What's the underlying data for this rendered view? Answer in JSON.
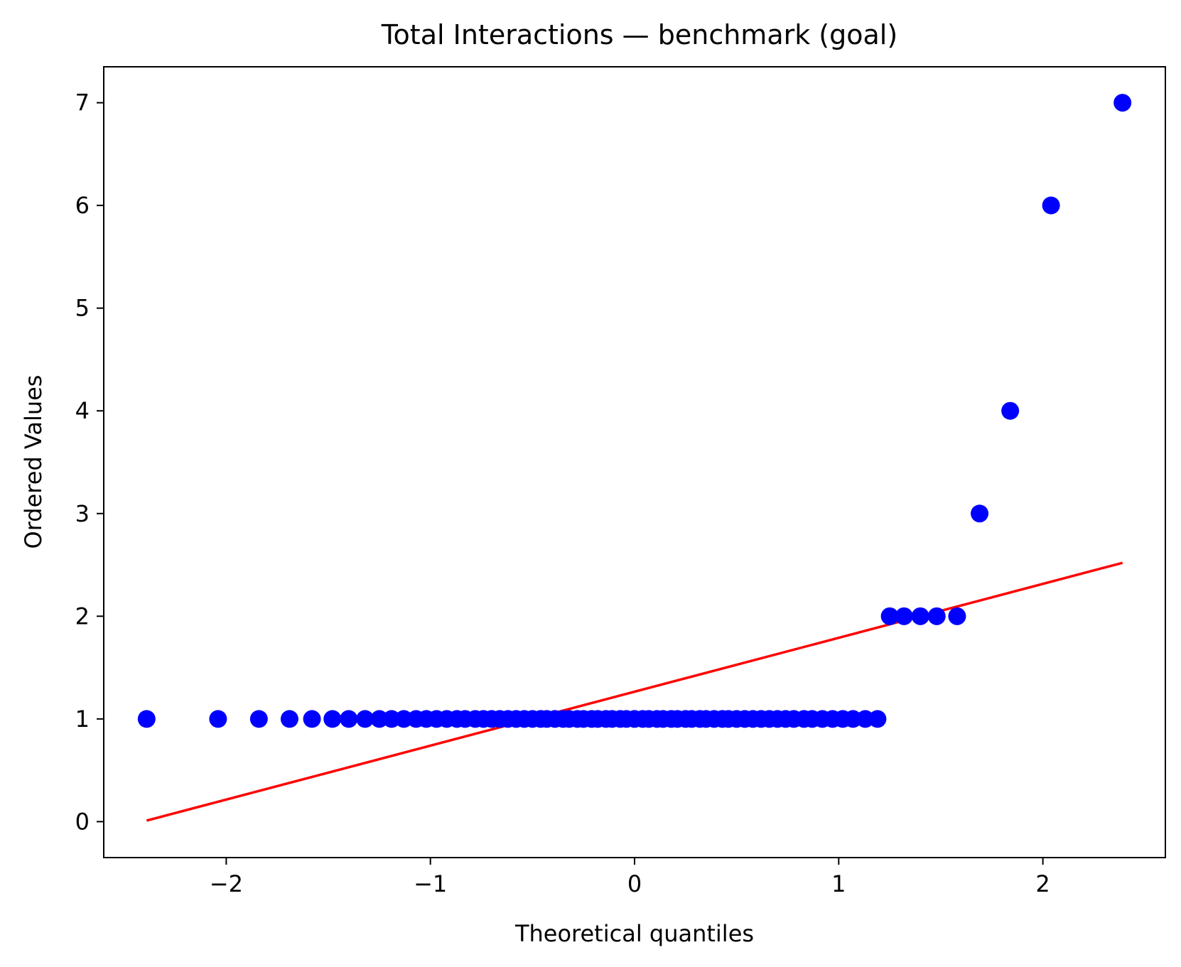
{
  "chart_data": {
    "type": "scatter",
    "title": "Total Interactions — benchmark (goal)",
    "xlabel": "Theoretical quantiles",
    "ylabel": "Ordered Values",
    "xlim": [
      -2.6,
      2.6
    ],
    "ylim": [
      -0.35,
      7.35
    ],
    "xticks": [
      -2,
      -1,
      0,
      1,
      2
    ],
    "xtick_labels": [
      "−2",
      "−1",
      "0",
      "1",
      "2"
    ],
    "yticks": [
      0,
      1,
      2,
      3,
      4,
      5,
      6,
      7
    ],
    "ytick_labels": [
      "0",
      "1",
      "2",
      "3",
      "4",
      "5",
      "6",
      "7"
    ],
    "grid": false,
    "point_color": "#0000ff",
    "line_color": "#ff0000",
    "points": {
      "x": [
        -2.39,
        -2.04,
        -1.84,
        -1.69,
        -1.58,
        -1.48,
        -1.4,
        -1.32,
        -1.25,
        -1.19,
        -1.13,
        -1.07,
        -1.02,
        -0.97,
        -0.92,
        -0.87,
        -0.83,
        -0.78,
        -0.74,
        -0.7,
        -0.66,
        -0.62,
        -0.58,
        -0.54,
        -0.5,
        -0.46,
        -0.43,
        -0.39,
        -0.35,
        -0.32,
        -0.28,
        -0.25,
        -0.21,
        -0.18,
        -0.14,
        -0.11,
        -0.07,
        -0.04,
        0.0,
        0.04,
        0.07,
        0.11,
        0.14,
        0.18,
        0.21,
        0.25,
        0.28,
        0.32,
        0.35,
        0.39,
        0.43,
        0.46,
        0.5,
        0.54,
        0.58,
        0.62,
        0.66,
        0.7,
        0.74,
        0.78,
        0.83,
        0.87,
        0.92,
        0.97,
        1.02,
        1.07,
        1.13,
        1.19,
        1.25,
        1.32,
        1.4,
        1.48,
        1.58,
        1.69,
        1.84,
        2.04,
        2.39
      ],
      "y": [
        1,
        1,
        1,
        1,
        1,
        1,
        1,
        1,
        1,
        1,
        1,
        1,
        1,
        1,
        1,
        1,
        1,
        1,
        1,
        1,
        1,
        1,
        1,
        1,
        1,
        1,
        1,
        1,
        1,
        1,
        1,
        1,
        1,
        1,
        1,
        1,
        1,
        1,
        1,
        1,
        1,
        1,
        1,
        1,
        1,
        1,
        1,
        1,
        1,
        1,
        1,
        1,
        1,
        1,
        1,
        1,
        1,
        1,
        1,
        1,
        1,
        1,
        1,
        1,
        1,
        1,
        1,
        1,
        2,
        2,
        2,
        2,
        2,
        3,
        4,
        6,
        7
      ]
    },
    "fit_line": {
      "x": [
        -2.39,
        2.39
      ],
      "y": [
        0.01,
        2.52
      ]
    }
  }
}
